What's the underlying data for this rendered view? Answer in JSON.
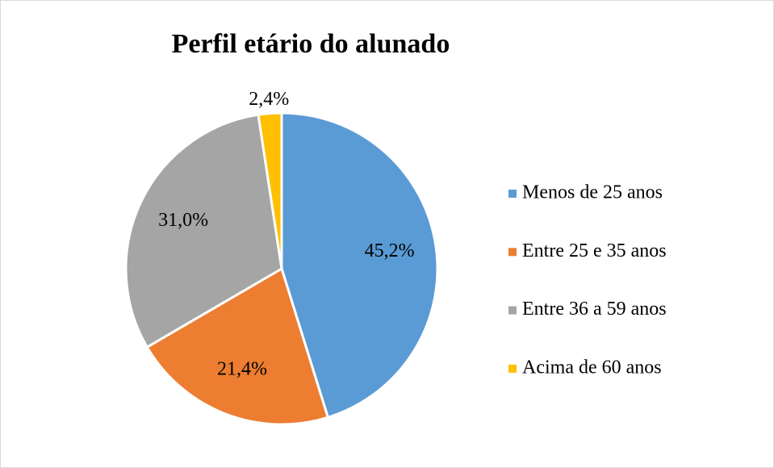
{
  "chart_data": {
    "type": "pie",
    "title": "Perfil etário do alunado",
    "categories": [
      "Menos de 25 anos",
      "Entre 25 e 35 anos",
      "Entre 36 a 59 anos",
      "Acima de 60 anos"
    ],
    "values": [
      45.2,
      21.4,
      31.0,
      2.4
    ],
    "value_labels": [
      "45,2%",
      "21,4%",
      "31,0%",
      "2,4%"
    ],
    "colors": [
      "#5b9bd5",
      "#ed7d31",
      "#a5a5a5",
      "#ffc000"
    ],
    "legend": "right"
  }
}
